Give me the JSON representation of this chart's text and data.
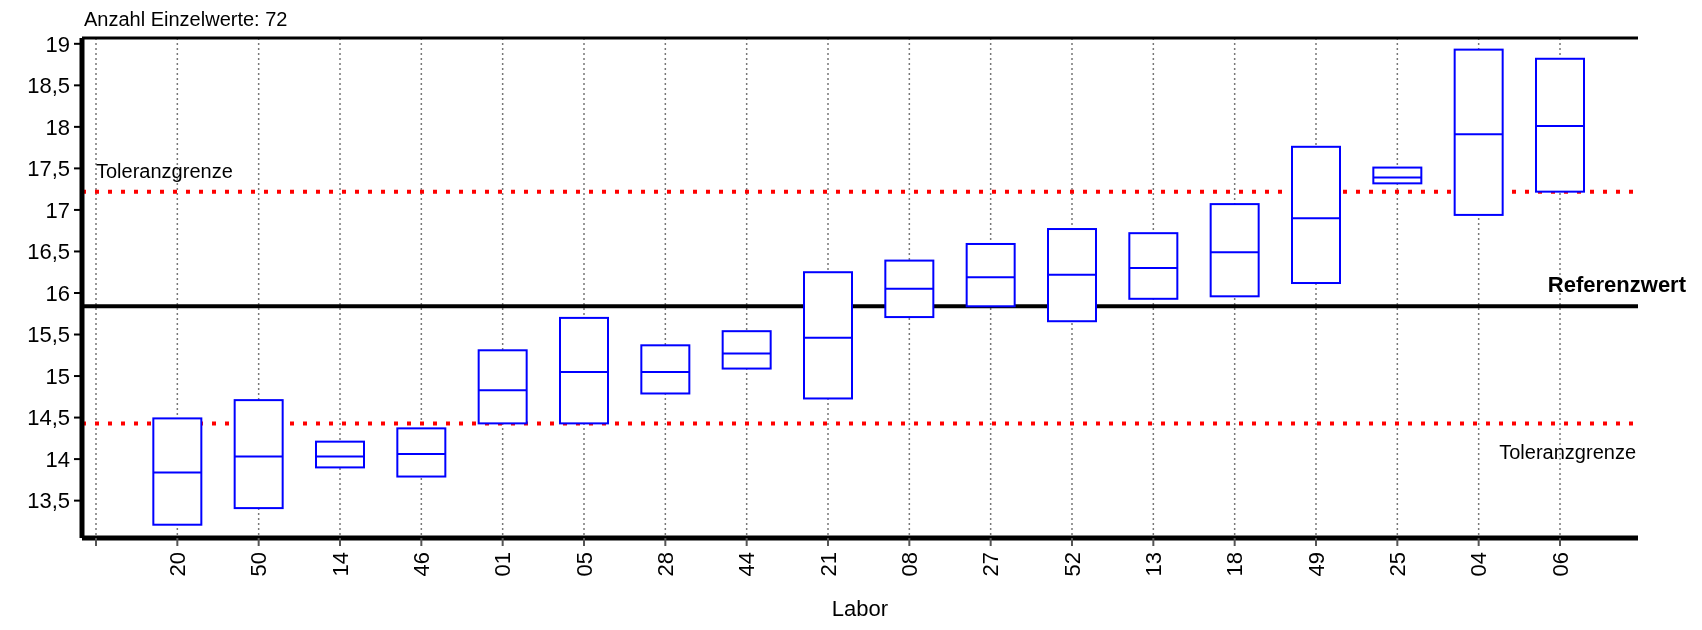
{
  "chart_data": {
    "type": "box",
    "title": "Anzahl Einzelwerte:   72",
    "xlabel": "Labor",
    "categories": [
      null,
      "20",
      "50",
      "14",
      "46",
      "01",
      "05",
      "28",
      "44",
      "21",
      "08",
      "27",
      "52",
      "13",
      "18",
      "49",
      "25",
      "04",
      "06"
    ],
    "color": "#0000ff",
    "boxes": [
      null,
      {
        "low": 13.21,
        "q1": 13.21,
        "median": 13.84,
        "q3": 14.49,
        "high": 14.49
      },
      {
        "low": 13.41,
        "q1": 13.41,
        "median": 14.03,
        "q3": 14.71,
        "high": 14.71
      },
      {
        "low": 13.9,
        "q1": 13.9,
        "median": 14.03,
        "q3": 14.21,
        "high": 14.21
      },
      {
        "low": 13.79,
        "q1": 13.79,
        "median": 14.06,
        "q3": 14.37,
        "high": 14.37
      },
      {
        "low": 14.43,
        "q1": 14.43,
        "median": 14.83,
        "q3": 15.31,
        "high": 15.31
      },
      {
        "low": 14.43,
        "q1": 14.43,
        "median": 15.05,
        "q3": 15.7,
        "high": 15.7
      },
      {
        "low": 14.79,
        "q1": 14.79,
        "median": 15.05,
        "q3": 15.37,
        "high": 15.37
      },
      {
        "low": 15.09,
        "q1": 15.09,
        "median": 15.27,
        "q3": 15.54,
        "high": 15.54
      },
      {
        "low": 14.73,
        "q1": 14.73,
        "median": 15.46,
        "q3": 16.25,
        "high": 16.25
      },
      {
        "low": 15.71,
        "q1": 15.71,
        "median": 16.05,
        "q3": 16.39,
        "high": 16.39
      },
      {
        "low": 15.84,
        "q1": 15.84,
        "median": 16.19,
        "q3": 16.59,
        "high": 16.59
      },
      {
        "low": 15.66,
        "q1": 15.66,
        "median": 16.22,
        "q3": 16.77,
        "high": 16.77
      },
      {
        "low": 15.93,
        "q1": 15.93,
        "median": 16.3,
        "q3": 16.72,
        "high": 16.72
      },
      {
        "low": 15.96,
        "q1": 15.96,
        "median": 16.49,
        "q3": 17.07,
        "high": 17.07
      },
      {
        "low": 16.12,
        "q1": 16.12,
        "median": 16.9,
        "q3": 17.76,
        "high": 17.76
      },
      {
        "low": 17.32,
        "q1": 17.32,
        "median": 17.39,
        "q3": 17.51,
        "high": 17.51
      },
      {
        "low": 16.94,
        "q1": 16.94,
        "median": 17.91,
        "q3": 18.93,
        "high": 18.93
      },
      {
        "low": 17.22,
        "q1": 17.22,
        "median": 18.01,
        "q3": 18.82,
        "high": 18.82
      }
    ],
    "ylim": [
      13.05,
      19.07
    ],
    "yticks": [
      {
        "value": 13.5,
        "label": "13,5"
      },
      14,
      {
        "value": 14.5,
        "label": "14,5"
      },
      15,
      {
        "value": 15.5,
        "label": "15,5"
      },
      16,
      {
        "value": 16.5,
        "label": "16,5"
      },
      17,
      {
        "value": 17.5,
        "label": "17,5"
      },
      18,
      {
        "value": 18.5,
        "label": "18,5"
      },
      19
    ],
    "grid": "x",
    "ref_lines": [
      {
        "axis": "y",
        "value": 17.22,
        "label": "Toleranzgrenze",
        "color": "#ff0000",
        "line_style": "dotted"
      },
      {
        "axis": "y",
        "value": 14.43,
        "label": "Toleranzgrenze",
        "color": "#ff0000",
        "line_style": "dotted"
      },
      {
        "axis": "y",
        "value": 15.84,
        "label": "Referenzwert",
        "color": "#000000",
        "line_style": "solid"
      }
    ]
  }
}
